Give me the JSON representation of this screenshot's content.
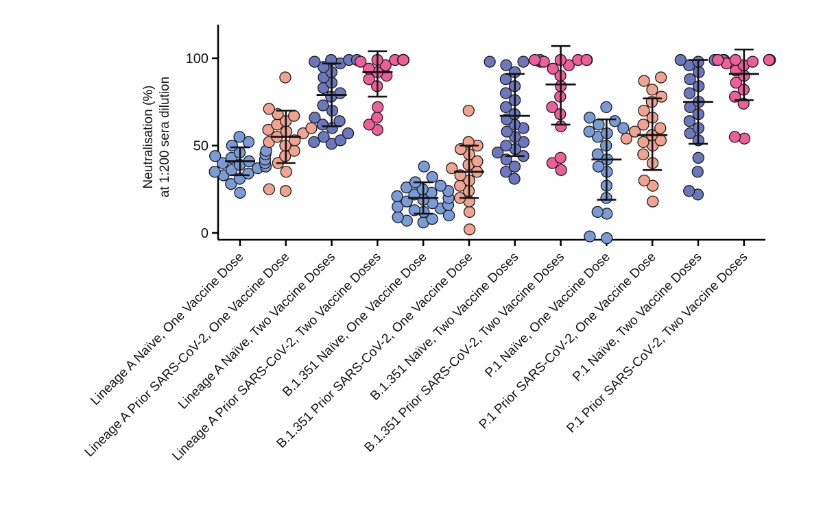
{
  "chart_data": {
    "type": "scatter",
    "subtype": "dot-plot with mean and SD bars",
    "ylabel": [
      "Neutralisation (%)",
      "at 1:200 sera dilution"
    ],
    "xlabel": "",
    "ylim": [
      -5,
      120
    ],
    "yticks": [
      0,
      50,
      100
    ],
    "grid": false,
    "colors": {
      "one_dose_naive": "#7a9bd6",
      "one_dose_prior": "#f0a390",
      "two_dose_naive": "#6c78bd",
      "two_dose_prior": "#ee5f99",
      "outline": "#1a1a1a",
      "axis": "#000000"
    },
    "groups": [
      {
        "label": "Lineage A Naïve, One Vaccine Dose",
        "color_key": "one_dose_naive",
        "mean": 41,
        "sd_low": 33,
        "sd_high": 49,
        "values": [
          23,
          28,
          31,
          33,
          34,
          35,
          36,
          37,
          38,
          39,
          40,
          40,
          41,
          42,
          43,
          44,
          45,
          46,
          47,
          50,
          52,
          55
        ]
      },
      {
        "label": "Lineage A Prior SARS-CoV-2, One Vaccine Dose",
        "color_key": "one_dose_prior",
        "mean": 55,
        "sd_low": 40,
        "sd_high": 70,
        "values": [
          24,
          25,
          35,
          40,
          44,
          47,
          50,
          52,
          53,
          55,
          57,
          58,
          59,
          60,
          62,
          64,
          67,
          68,
          71,
          89
        ]
      },
      {
        "label": "Lineage A Naïve, Two Vaccine Doses",
        "color_key": "two_dose_naive",
        "mean": 79,
        "sd_low": 61,
        "sd_high": 97,
        "values": [
          51,
          52,
          53,
          55,
          57,
          60,
          62,
          64,
          66,
          70,
          73,
          78,
          80,
          83,
          86,
          89,
          92,
          95,
          97,
          98,
          99,
          99,
          99
        ]
      },
      {
        "label": "Lineage A Prior SARS-CoV-2, Two Vaccine Doses",
        "color_key": "two_dose_prior",
        "mean": 92,
        "sd_low": 78,
        "sd_high": 104,
        "values": [
          59,
          62,
          66,
          72,
          84,
          88,
          90,
          92,
          94,
          96,
          98,
          99,
          99,
          99,
          99,
          99,
          99
        ]
      },
      {
        "label": "B.1.351 Naïve, One Vaccine Dose",
        "color_key": "one_dose_naive",
        "mean": 20,
        "sd_low": 11,
        "sd_high": 29,
        "values": [
          6,
          7,
          8,
          9,
          10,
          12,
          13,
          14,
          15,
          16,
          17,
          18,
          19,
          20,
          21,
          22,
          23,
          24,
          25,
          26,
          27,
          29,
          32,
          38
        ]
      },
      {
        "label": "B.1.351 Prior SARS-CoV-2, One Vaccine Dose",
        "color_key": "one_dose_prior",
        "mean": 35,
        "sd_low": 20,
        "sd_high": 50,
        "values": [
          2,
          12,
          18,
          20,
          24,
          27,
          30,
          33,
          35,
          37,
          39,
          41,
          45,
          48,
          50,
          52,
          70
        ]
      },
      {
        "label": "B.1.351 Naïve, Two Vaccine Doses",
        "color_key": "two_dose_naive",
        "mean": 67,
        "sd_low": 44,
        "sd_high": 91,
        "values": [
          31,
          35,
          38,
          42,
          44,
          46,
          48,
          50,
          52,
          55,
          58,
          60,
          62,
          65,
          68,
          72,
          76,
          80,
          84,
          88,
          92,
          96,
          98,
          98,
          98,
          99
        ]
      },
      {
        "label": "B.1.351 Prior SARS-CoV-2, Two Vaccine Doses",
        "color_key": "two_dose_prior",
        "mean": 85,
        "sd_low": 62,
        "sd_high": 107,
        "values": [
          36,
          40,
          43,
          61,
          68,
          72,
          78,
          84,
          90,
          94,
          96,
          98,
          99,
          99,
          99,
          99,
          99
        ]
      },
      {
        "label": "P.1 Naïve, One Vaccine Dose",
        "color_key": "one_dose_naive",
        "mean": 42,
        "sd_low": 19,
        "sd_high": 65,
        "values": [
          -3,
          -2,
          11,
          12,
          20,
          27,
          35,
          38,
          42,
          45,
          50,
          55,
          57,
          58,
          60,
          62,
          64,
          66,
          72
        ]
      },
      {
        "label": "P.1 Prior SARS-CoV-2, One Vaccine Dose",
        "color_key": "one_dose_prior",
        "mean": 56,
        "sd_low": 36,
        "sd_high": 77,
        "values": [
          18,
          27,
          30,
          40,
          45,
          50,
          52,
          53,
          54,
          56,
          58,
          60,
          62,
          66,
          70,
          75,
          78,
          82,
          87,
          89
        ]
      },
      {
        "label": "P.1 Naïve, Two Vaccine Doses",
        "color_key": "two_dose_naive",
        "mean": 75,
        "sd_low": 51,
        "sd_high": 99,
        "values": [
          22,
          24,
          35,
          43,
          53,
          57,
          60,
          64,
          68,
          72,
          75,
          80,
          84,
          88,
          92,
          96,
          98,
          99,
          99,
          99,
          99
        ]
      },
      {
        "label": "P.1 Prior SARS-CoV-2, Two Vaccine Doses",
        "color_key": "two_dose_prior",
        "mean": 91,
        "sd_low": 76,
        "sd_high": 105,
        "values": [
          54,
          55,
          74,
          78,
          82,
          86,
          90,
          93,
          96,
          97,
          98,
          99,
          99,
          99,
          99,
          99,
          99
        ]
      }
    ]
  }
}
